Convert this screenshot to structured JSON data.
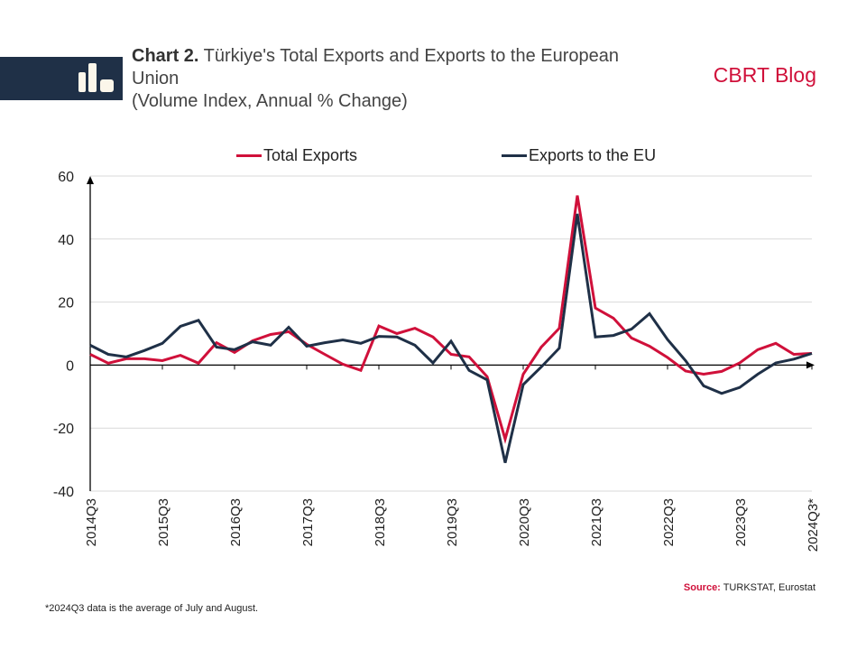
{
  "header": {
    "title_bold": "Chart 2.",
    "title_rest": " Türkiye's Total Exports and Exports to the European Union",
    "subtitle": "(Volume Index, Annual % Change)",
    "brand": "CBRT Blog",
    "icon": "bar-chart-icon"
  },
  "colors": {
    "total": "#d0103a",
    "eu": "#1f3047",
    "brand": "#d0103a",
    "icon_block": "#1f3047"
  },
  "footer": {
    "source_label": "Source:",
    "source_text": " TURKSTAT, Eurostat",
    "footnote": "*2024Q3 data is the average of July and August."
  },
  "chart_data": {
    "type": "line",
    "title": "Türkiye's Total Exports and Exports to the European Union",
    "subtitle": "(Volume Index, Annual % Change)",
    "xlabel": "",
    "ylabel": "",
    "ylim": [
      -40,
      60
    ],
    "yticks": [
      -40,
      -20,
      0,
      20,
      40,
      60
    ],
    "grid": true,
    "legend": "top-center",
    "x": [
      "2014Q3",
      "2014Q4",
      "2015Q1",
      "2015Q2",
      "2015Q3",
      "2015Q4",
      "2016Q1",
      "2016Q2",
      "2016Q3",
      "2016Q4",
      "2017Q1",
      "2017Q2",
      "2017Q3",
      "2017Q4",
      "2018Q1",
      "2018Q2",
      "2018Q3",
      "2018Q4",
      "2019Q1",
      "2019Q2",
      "2019Q3",
      "2019Q4",
      "2020Q1",
      "2020Q2",
      "2020Q3",
      "2020Q4",
      "2021Q1",
      "2021Q2",
      "2021Q3",
      "2021Q4",
      "2022Q1",
      "2022Q2",
      "2022Q3",
      "2022Q4",
      "2023Q1",
      "2023Q2",
      "2023Q3",
      "2023Q4",
      "2024Q1",
      "2024Q2",
      "2024Q3*"
    ],
    "xtick_labels": [
      "2014Q3",
      "2015Q3",
      "2016Q3",
      "2017Q3",
      "2018Q3",
      "2019Q3",
      "2020Q3",
      "2021Q3",
      "2022Q3",
      "2023Q3",
      "2024Q3*"
    ],
    "series": [
      {
        "name": "Total Exports",
        "color": "#d0103a",
        "values": [
          3.4,
          0.6,
          2.0,
          2.0,
          1.4,
          3.1,
          0.6,
          7.1,
          4.0,
          7.7,
          9.7,
          10.6,
          6.6,
          3.4,
          0.3,
          -1.7,
          12.4,
          10.0,
          11.7,
          8.9,
          3.4,
          2.6,
          -3.7,
          -23.5,
          -2.9,
          5.7,
          11.7,
          53.8,
          18.1,
          14.9,
          8.6,
          6.0,
          2.4,
          -1.9,
          -2.9,
          -2.0,
          0.7,
          4.9,
          6.9,
          3.4,
          3.7
        ]
      },
      {
        "name": "Exports to the EU",
        "color": "#1f3047",
        "values": [
          6.3,
          3.4,
          2.6,
          4.6,
          6.9,
          12.3,
          14.2,
          5.7,
          4.9,
          7.4,
          6.3,
          12.0,
          6.0,
          7.1,
          8.0,
          6.9,
          9.1,
          8.9,
          6.3,
          0.7,
          7.6,
          -1.7,
          -4.7,
          -31.0,
          -6.2,
          -0.6,
          5.4,
          48.0,
          8.9,
          9.4,
          11.4,
          16.3,
          8.1,
          1.4,
          -6.6,
          -9.0,
          -7.1,
          -2.9,
          0.7,
          1.9,
          3.7
        ]
      }
    ]
  }
}
